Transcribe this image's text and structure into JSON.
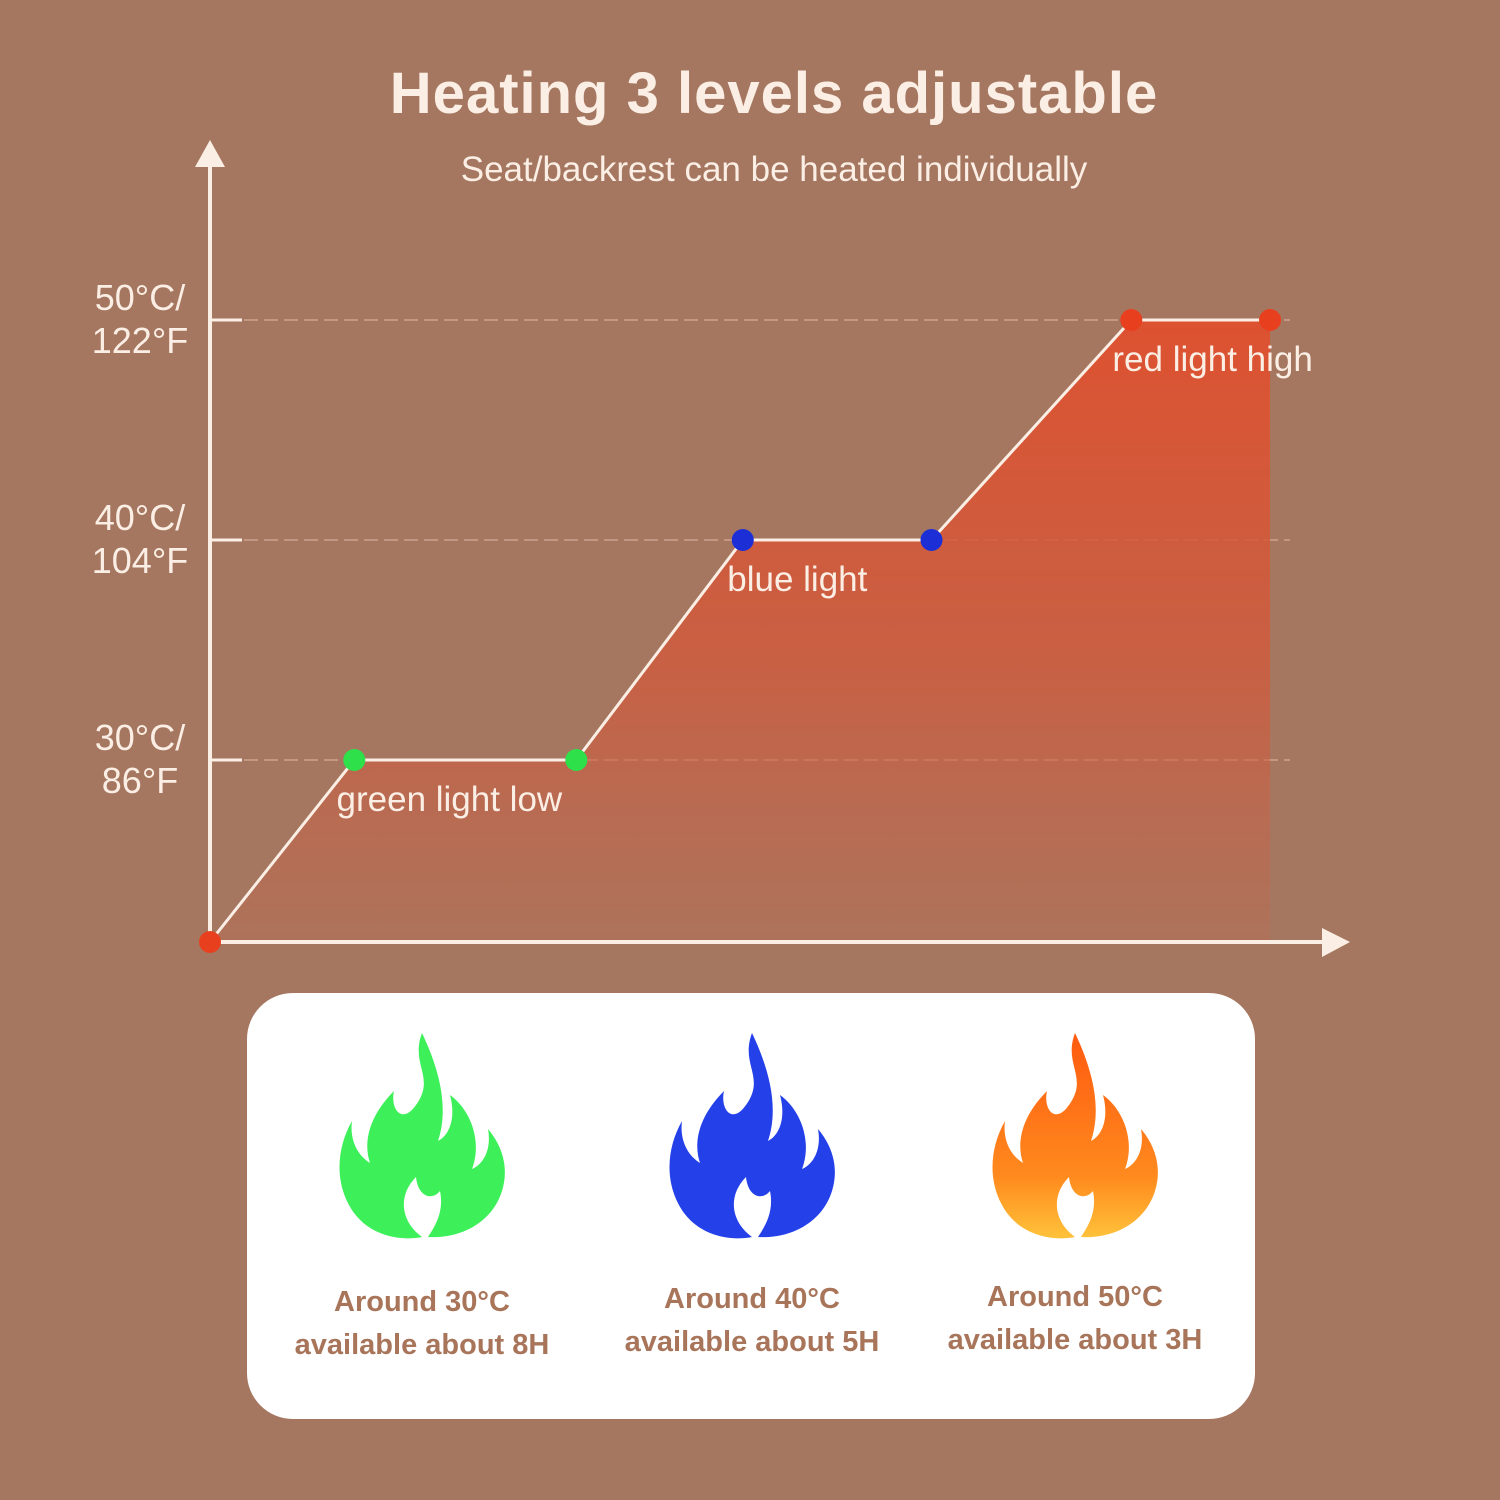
{
  "title": "Heating 3 levels adjustable",
  "subtitle": "Seat/backrest can be heated individually",
  "chart_data": {
    "type": "area",
    "y_ticks": [
      {
        "value": 30,
        "label": "30°C/\n86°F"
      },
      {
        "value": 40,
        "label": "40°C/\n104°F"
      },
      {
        "value": 50,
        "label": "50°C/\n122°F"
      }
    ],
    "ylim": [
      22,
      58
    ],
    "xlim": [
      0,
      10
    ],
    "grid": "dashed at tick levels",
    "points": [
      {
        "x": 0,
        "y": 22,
        "color": "#e8401f"
      },
      {
        "x": 1.3,
        "y": 30,
        "color": "#2ee04a"
      },
      {
        "x": 3.3,
        "y": 30,
        "color": "#2ee04a"
      },
      {
        "x": 4.8,
        "y": 40,
        "color": "#1c2fd6"
      },
      {
        "x": 6.5,
        "y": 40,
        "color": "#1c2fd6"
      },
      {
        "x": 8.3,
        "y": 50,
        "color": "#e8401f"
      },
      {
        "x": 9.55,
        "y": 50,
        "color": "#e8401f"
      }
    ],
    "level_labels": [
      {
        "text": "green light low",
        "x": 1.23,
        "y": 30
      },
      {
        "text": "blue light",
        "x": 4.75,
        "y": 40
      },
      {
        "text": "red light high",
        "x": 8.22,
        "y": 50
      }
    ],
    "fill_color": "#e0502e"
  },
  "levels": [
    {
      "temp": "Around 30°C",
      "duration": "available about 8H",
      "flame_color": "#3df05a",
      "flame_icon": "green-flame-icon"
    },
    {
      "temp": "Around 40°C",
      "duration": "available about 5H",
      "flame_color": "#2440e8",
      "flame_icon": "blue-flame-icon"
    },
    {
      "temp": "Around 50°C",
      "duration": "available about 3H",
      "flame_color": "#ff7a18",
      "flame_icon": "orange-flame-icon"
    }
  ]
}
